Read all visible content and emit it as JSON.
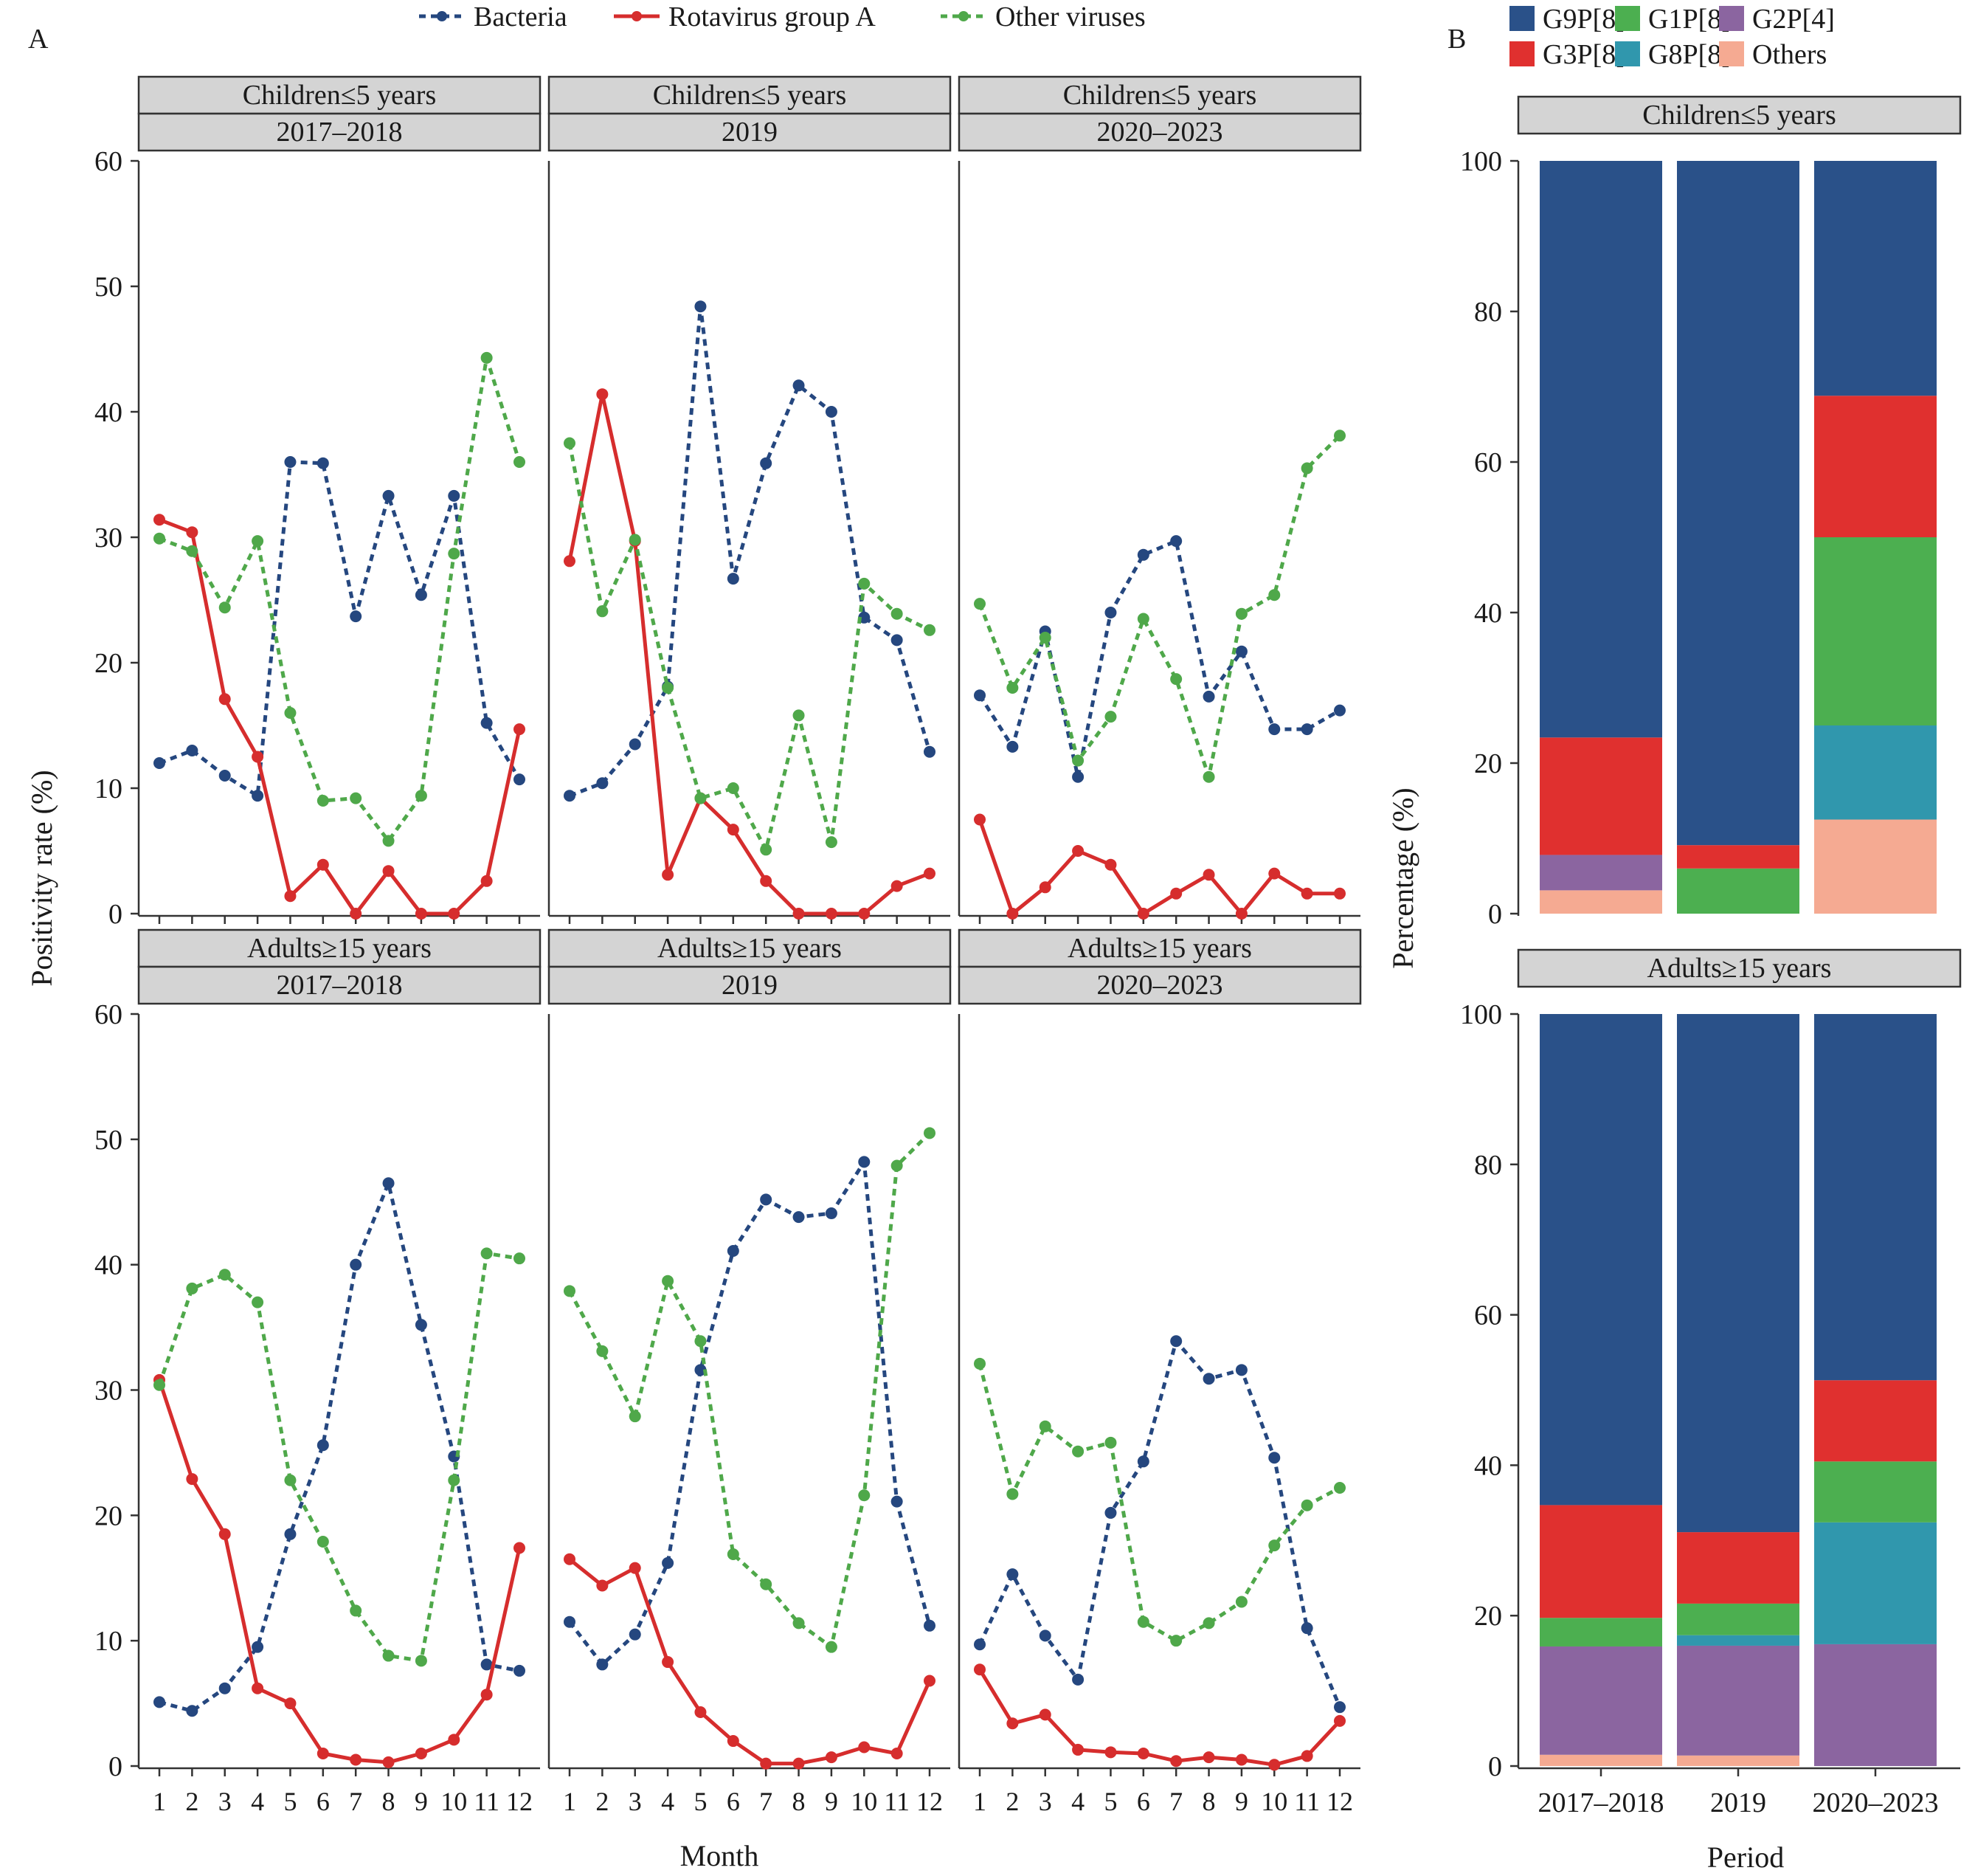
{
  "panel_labels": {
    "a": "A",
    "b": "B"
  },
  "legend_a": {
    "items": [
      {
        "label": "Bacteria",
        "color": "#25477f",
        "dashed": true
      },
      {
        "label": "Rotavirus group A",
        "color": "#d62d2d",
        "dashed": false
      },
      {
        "label": "Other viruses",
        "color": "#4fa84a",
        "dashed": true
      }
    ]
  },
  "legend_b": {
    "items": [
      {
        "label": "G9P[8]",
        "color": "#2a5189"
      },
      {
        "label": "G1P[8]",
        "color": "#4caf50"
      },
      {
        "label": "G2P[4]",
        "color": "#8b65a0"
      },
      {
        "label": "G3P[8]",
        "color": "#e0302f"
      },
      {
        "label": "G8P[8]",
        "color": "#3097ad"
      },
      {
        "label": "Others",
        "color": "#f5aa92"
      }
    ]
  },
  "chart_data": [
    {
      "type": "line",
      "panel": "A",
      "xlabel": "Month",
      "ylabel": "Positivity rate (%)",
      "ylim": [
        0,
        60
      ],
      "yticks": [
        0,
        10,
        20,
        30,
        40,
        50,
        60
      ],
      "x": [
        1,
        2,
        3,
        4,
        5,
        6,
        7,
        8,
        9,
        10,
        11,
        12
      ],
      "facets": [
        {
          "group": "Children≤5 years",
          "period": "2017–2018",
          "series": [
            {
              "name": "Bacteria",
              "values": [
                12,
                13,
                11,
                9.4,
                36,
                35.9,
                23.7,
                33.3,
                25.4,
                33.3,
                15.2,
                10.7
              ]
            },
            {
              "name": "Rotavirus group A",
              "values": [
                31.4,
                30.4,
                17.1,
                12.5,
                1.4,
                3.9,
                0,
                3.4,
                0,
                0,
                2.6,
                14.7
              ]
            },
            {
              "name": "Other viruses",
              "values": [
                29.9,
                28.9,
                24.4,
                29.7,
                16,
                9,
                9.2,
                5.8,
                9.4,
                28.7,
                44.3,
                36
              ]
            }
          ]
        },
        {
          "group": "Children≤5 years",
          "period": "2019",
          "series": [
            {
              "name": "Bacteria",
              "values": [
                9.4,
                10.4,
                13.5,
                18.1,
                48.4,
                26.7,
                35.9,
                42.1,
                40,
                23.6,
                21.8,
                12.9
              ]
            },
            {
              "name": "Rotavirus group A",
              "values": [
                28.1,
                41.4,
                29.7,
                3.1,
                9.2,
                6.7,
                2.6,
                0,
                0,
                0,
                2.2,
                3.2
              ]
            },
            {
              "name": "Other viruses",
              "values": [
                37.5,
                24.1,
                29.8,
                18,
                9.2,
                10,
                5.1,
                15.8,
                5.7,
                26.3,
                23.9,
                22.6
              ]
            }
          ]
        },
        {
          "group": "Children≤5 years",
          "period": "2020–2023",
          "series": [
            {
              "name": "Bacteria",
              "values": [
                17.4,
                13.3,
                22.5,
                10.9,
                24,
                28.6,
                29.7,
                17.3,
                20.9,
                14.7,
                14.7,
                16.2
              ]
            },
            {
              "name": "Rotavirus group A",
              "values": [
                7.5,
                0,
                2.1,
                5,
                3.9,
                0,
                1.6,
                3.1,
                0,
                3.2,
                1.6,
                1.6
              ]
            },
            {
              "name": "Other viruses",
              "values": [
                24.7,
                18,
                22,
                12.2,
                15.7,
                23.5,
                18.7,
                10.9,
                23.9,
                25.4,
                35.5,
                38.1
              ]
            }
          ]
        },
        {
          "group": "Adults≥15 years",
          "period": "2017–2018",
          "series": [
            {
              "name": "Bacteria",
              "values": [
                5.1,
                4.4,
                6.2,
                9.5,
                18.5,
                25.6,
                40,
                46.5,
                35.2,
                24.7,
                8.1,
                7.6
              ]
            },
            {
              "name": "Rotavirus group A",
              "values": [
                30.8,
                22.9,
                18.5,
                6.2,
                5,
                1,
                0.5,
                0.3,
                1,
                2.1,
                5.7,
                17.4
              ]
            },
            {
              "name": "Other viruses",
              "values": [
                30.4,
                38.1,
                39.2,
                37,
                22.8,
                17.9,
                12.4,
                8.8,
                8.4,
                22.8,
                40.9,
                40.5
              ]
            }
          ]
        },
        {
          "group": "Adults≥15 years",
          "period": "2019",
          "series": [
            {
              "name": "Bacteria",
              "values": [
                11.5,
                8.1,
                10.5,
                16.2,
                31.6,
                41.1,
                45.2,
                43.8,
                44.1,
                48.2,
                21.1,
                11.2
              ]
            },
            {
              "name": "Rotavirus group A",
              "values": [
                16.5,
                14.4,
                15.8,
                8.3,
                4.3,
                2,
                0.2,
                0.2,
                0.7,
                1.5,
                1,
                6.8
              ]
            },
            {
              "name": "Other viruses",
              "values": [
                37.9,
                33.1,
                27.9,
                38.7,
                33.9,
                16.9,
                14.5,
                11.4,
                9.5,
                21.6,
                47.9,
                50.5
              ]
            }
          ]
        },
        {
          "group": "Adults≥15 years",
          "period": "2020–2023",
          "series": [
            {
              "name": "Bacteria",
              "values": [
                9.7,
                15.3,
                10.4,
                6.9,
                20.2,
                24.3,
                33.9,
                30.9,
                31.6,
                24.6,
                11,
                4.7
              ]
            },
            {
              "name": "Rotavirus group A",
              "values": [
                7.7,
                3.4,
                4.1,
                1.3,
                1.1,
                1,
                0.4,
                0.7,
                0.5,
                0.1,
                0.8,
                3.6
              ]
            },
            {
              "name": "Other viruses",
              "values": [
                32.1,
                21.7,
                27.1,
                25.1,
                25.8,
                11.5,
                10,
                11.4,
                13.1,
                17.6,
                20.8,
                22.2
              ]
            }
          ]
        }
      ]
    },
    {
      "type": "bar",
      "stacked": true,
      "panel": "B",
      "xlabel": "Period",
      "ylabel": "Percentage (%)",
      "ylim": [
        0,
        100
      ],
      "yticks": [
        0,
        20,
        40,
        60,
        80,
        100
      ],
      "categories": [
        "2017–2018",
        "2019",
        "2020–2023"
      ],
      "stack_order": [
        "Others",
        "G2P[4]",
        "G8P[8]",
        "G1P[8]",
        "G3P[8]",
        "G9P[8]"
      ],
      "facets": [
        {
          "group": "Children≤5 years",
          "series": [
            {
              "name": "Others",
              "values": [
                3.1,
                0,
                12.5
              ]
            },
            {
              "name": "G2P[4]",
              "values": [
                4.7,
                0,
                0
              ]
            },
            {
              "name": "G8P[8]",
              "values": [
                0,
                0,
                12.5
              ]
            },
            {
              "name": "G1P[8]",
              "values": [
                0,
                6,
                25
              ]
            },
            {
              "name": "G3P[8]",
              "values": [
                15.6,
                3.1,
                18.8
              ]
            },
            {
              "name": "G9P[8]",
              "values": [
                76.6,
                90.9,
                31.2
              ]
            }
          ]
        },
        {
          "group": "Adults≥15 years",
          "series": [
            {
              "name": "Others",
              "values": [
                1.5,
                1.4,
                0
              ]
            },
            {
              "name": "G2P[4]",
              "values": [
                14.4,
                14.6,
                16.2
              ]
            },
            {
              "name": "G8P[8]",
              "values": [
                0,
                1.4,
                16.2
              ]
            },
            {
              "name": "G1P[8]",
              "values": [
                3.8,
                4.2,
                8.1
              ]
            },
            {
              "name": "G3P[8]",
              "values": [
                15,
                9.5,
                10.8
              ]
            },
            {
              "name": "G9P[8]",
              "values": [
                65.3,
                68.9,
                48.7
              ]
            }
          ]
        }
      ]
    }
  ]
}
